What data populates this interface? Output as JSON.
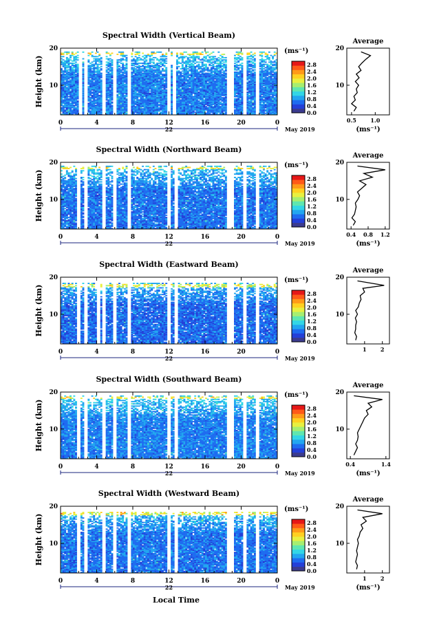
{
  "figure": {
    "xlabel": "Local Time",
    "date_label": "May 2019",
    "day_label": "22",
    "avg_title": "Average",
    "unit": "(ms⁻¹)"
  },
  "colors": {
    "scale": [
      "#3b3b8f",
      "#2440d8",
      "#1e6cf0",
      "#22a6f0",
      "#33d6e6",
      "#5fe6b0",
      "#a6ee70",
      "#e8f040",
      "#ffd020",
      "#ff9a18",
      "#ff5a18",
      "#e61818"
    ]
  },
  "chart_data": [
    {
      "type": "heatmap",
      "title": "Spectral Width (Vertical Beam)",
      "ylabel": "Height (km)",
      "xticks": [
        "0",
        "4",
        "8",
        "12",
        "16",
        "20",
        "0"
      ],
      "yticks": [
        "20",
        "10"
      ],
      "xlim": [
        0,
        24
      ],
      "ylim": [
        2,
        20
      ],
      "colorbar": {
        "ticks": [
          "2.8",
          "2.4",
          "2.0",
          "1.6",
          "1.2",
          "0.8",
          "0.4",
          "0.0"
        ],
        "range": [
          0,
          3.0
        ]
      },
      "gaps": [
        [
          2.0,
          2.4
        ],
        [
          2.7,
          3.0
        ],
        [
          4.7,
          5.0
        ],
        [
          5.8,
          6.2
        ],
        [
          7.5,
          7.8
        ],
        [
          11.8,
          12.2
        ],
        [
          12.5,
          12.8
        ],
        [
          18.5,
          19.2
        ],
        [
          20.3,
          20.6
        ],
        [
          21.6,
          21.9
        ]
      ],
      "data_top": 18.5,
      "base": 0.45,
      "spread": 0.25,
      "average": {
        "xticks": [
          "0.5",
          "1.0"
        ],
        "xlim": [
          0.4,
          1.3
        ],
        "yticks": [
          "20",
          "10"
        ],
        "xlabel": "(ms⁻¹)",
        "profile": [
          [
            0.55,
            3
          ],
          [
            0.6,
            4
          ],
          [
            0.5,
            5
          ],
          [
            0.58,
            6
          ],
          [
            0.55,
            7
          ],
          [
            0.62,
            8
          ],
          [
            0.6,
            9
          ],
          [
            0.65,
            10
          ],
          [
            0.58,
            11
          ],
          [
            0.66,
            12
          ],
          [
            0.6,
            13
          ],
          [
            0.7,
            14
          ],
          [
            0.65,
            15
          ],
          [
            0.72,
            16
          ],
          [
            0.8,
            17
          ],
          [
            0.9,
            18
          ],
          [
            0.7,
            19
          ]
        ]
      }
    },
    {
      "type": "heatmap",
      "title": "Spectral Width (Northward Beam)",
      "ylabel": "Height (km)",
      "xticks": [
        "0",
        "4",
        "8",
        "12",
        "16",
        "20",
        "0"
      ],
      "yticks": [
        "20",
        "10"
      ],
      "xlim": [
        0,
        24
      ],
      "ylim": [
        2,
        20
      ],
      "colorbar": {
        "ticks": [
          "2.8",
          "2.4",
          "2.0",
          "1.6",
          "1.2",
          "0.8",
          "0.4",
          "0.0"
        ],
        "range": [
          0,
          3.0
        ]
      },
      "gaps": [
        [
          1.8,
          2.1
        ],
        [
          2.6,
          2.9
        ],
        [
          4.7,
          5.0
        ],
        [
          5.8,
          6.2
        ],
        [
          7.5,
          7.8
        ],
        [
          11.8,
          12.2
        ],
        [
          12.6,
          12.9
        ],
        [
          18.5,
          19.2
        ],
        [
          20.3,
          20.6
        ],
        [
          21.6,
          21.9
        ]
      ],
      "data_top": 18.5,
      "base": 0.4,
      "spread": 0.22,
      "average": {
        "xticks": [
          "0.4",
          "0.8",
          "1.2"
        ],
        "xlim": [
          0.3,
          1.3
        ],
        "yticks": [
          "20",
          "10"
        ],
        "xlabel": "(ms⁻¹)",
        "profile": [
          [
            0.45,
            3
          ],
          [
            0.5,
            4
          ],
          [
            0.42,
            5
          ],
          [
            0.48,
            6
          ],
          [
            0.5,
            7
          ],
          [
            0.52,
            8
          ],
          [
            0.5,
            9
          ],
          [
            0.56,
            10
          ],
          [
            0.6,
            11
          ],
          [
            0.55,
            12
          ],
          [
            0.65,
            13
          ],
          [
            0.75,
            14
          ],
          [
            0.6,
            15
          ],
          [
            0.9,
            16
          ],
          [
            0.7,
            17
          ],
          [
            1.2,
            18
          ],
          [
            0.55,
            19
          ]
        ]
      }
    },
    {
      "type": "heatmap",
      "title": "Spectral Width (Eastward Beam)",
      "ylabel": "Height (km)",
      "xticks": [
        "0",
        "4",
        "8",
        "12",
        "16",
        "20",
        "0"
      ],
      "yticks": [
        "20",
        "10"
      ],
      "xlim": [
        0,
        24
      ],
      "ylim": [
        2,
        20
      ],
      "colorbar": {
        "ticks": [
          "2.8",
          "2.4",
          "2.0",
          "1.6",
          "1.2",
          "0.8",
          "0.4",
          "0.0"
        ],
        "range": [
          0,
          3.0
        ]
      },
      "gaps": [
        [
          1.8,
          2.1
        ],
        [
          2.6,
          2.9
        ],
        [
          4.0,
          4.3
        ],
        [
          4.7,
          5.0
        ],
        [
          5.8,
          6.2
        ],
        [
          7.5,
          7.8
        ],
        [
          11.8,
          12.2
        ],
        [
          12.6,
          12.9
        ],
        [
          18.5,
          19.2
        ],
        [
          20.3,
          20.6
        ],
        [
          21.6,
          21.9
        ]
      ],
      "data_top": 17.8,
      "base": 0.35,
      "spread": 0.22,
      "average": {
        "xticks": [
          "1",
          "2"
        ],
        "xlim": [
          0,
          2.4
        ],
        "yticks": [
          "20",
          "10"
        ],
        "xlabel": "",
        "profile": [
          [
            0.5,
            3
          ],
          [
            0.55,
            4
          ],
          [
            0.45,
            5
          ],
          [
            0.5,
            6
          ],
          [
            0.5,
            7
          ],
          [
            0.55,
            8
          ],
          [
            0.48,
            9
          ],
          [
            0.6,
            10
          ],
          [
            0.5,
            11
          ],
          [
            0.65,
            12
          ],
          [
            0.7,
            13
          ],
          [
            0.8,
            14
          ],
          [
            0.75,
            15
          ],
          [
            1.0,
            16
          ],
          [
            0.9,
            17
          ],
          [
            2.1,
            17.8
          ],
          [
            0.6,
            19
          ]
        ]
      }
    },
    {
      "type": "heatmap",
      "title": "Spectral Width (Southward Beam)",
      "ylabel": "Height (km)",
      "xticks": [
        "0",
        "4",
        "8",
        "12",
        "16",
        "20",
        "0"
      ],
      "yticks": [
        "20",
        "10"
      ],
      "xlim": [
        0,
        24
      ],
      "ylim": [
        2,
        20
      ],
      "colorbar": {
        "ticks": [
          "2.8",
          "2.4",
          "2.0",
          "1.6",
          "1.2",
          "0.8",
          "0.4",
          "0.0"
        ],
        "range": [
          0,
          3.0
        ]
      },
      "gaps": [
        [
          1.8,
          2.1
        ],
        [
          2.6,
          2.9
        ],
        [
          4.7,
          5.0
        ],
        [
          5.8,
          6.2
        ],
        [
          7.5,
          7.8
        ],
        [
          11.8,
          12.2
        ],
        [
          12.6,
          12.9
        ],
        [
          18.5,
          19.2
        ],
        [
          20.3,
          20.6
        ],
        [
          21.6,
          21.9
        ]
      ],
      "data_top": 18.5,
      "base": 0.45,
      "spread": 0.22,
      "average": {
        "xticks": [
          "0.4",
          "1.4"
        ],
        "xlim": [
          0.3,
          1.5
        ],
        "yticks": [
          "20",
          "10"
        ],
        "xlabel": "(ms⁻¹)",
        "profile": [
          [
            0.5,
            3
          ],
          [
            0.55,
            4
          ],
          [
            0.6,
            5
          ],
          [
            0.55,
            6
          ],
          [
            0.6,
            7
          ],
          [
            0.62,
            8
          ],
          [
            0.6,
            9
          ],
          [
            0.65,
            10
          ],
          [
            0.7,
            11
          ],
          [
            0.75,
            12
          ],
          [
            0.8,
            13
          ],
          [
            0.9,
            14
          ],
          [
            0.85,
            15
          ],
          [
            1.0,
            16
          ],
          [
            0.9,
            17
          ],
          [
            1.3,
            18
          ],
          [
            0.5,
            19
          ]
        ]
      }
    },
    {
      "type": "heatmap",
      "title": "Spectral Width (Westward Beam)",
      "ylabel": "Height (km)",
      "xticks": [
        "0",
        "4",
        "8",
        "12",
        "16",
        "20",
        "0"
      ],
      "yticks": [
        "20",
        "10"
      ],
      "xlim": [
        0,
        24
      ],
      "ylim": [
        2,
        20
      ],
      "colorbar": {
        "ticks": [
          "2.8",
          "2.4",
          "2.0",
          "1.6",
          "1.2",
          "0.8",
          "0.4",
          "0.0"
        ],
        "range": [
          0,
          3.0
        ]
      },
      "gaps": [
        [
          1.8,
          2.1
        ],
        [
          2.6,
          2.9
        ],
        [
          4.7,
          5.0
        ],
        [
          5.8,
          6.2
        ],
        [
          7.5,
          7.8
        ],
        [
          11.8,
          12.2
        ],
        [
          12.6,
          12.9
        ],
        [
          18.5,
          19.2
        ],
        [
          20.3,
          20.6
        ],
        [
          21.6,
          21.9
        ]
      ],
      "data_top": 18.0,
      "base": 0.4,
      "spread": 0.22,
      "average": {
        "xticks": [
          "1",
          "2"
        ],
        "xlim": [
          0,
          2.4
        ],
        "yticks": [
          "20",
          "10"
        ],
        "xlabel": "(ms⁻¹)",
        "profile": [
          [
            0.55,
            3
          ],
          [
            0.6,
            4
          ],
          [
            0.5,
            5
          ],
          [
            0.55,
            6
          ],
          [
            0.6,
            7
          ],
          [
            0.55,
            8
          ],
          [
            0.6,
            9
          ],
          [
            0.65,
            10
          ],
          [
            0.6,
            11
          ],
          [
            0.7,
            12
          ],
          [
            0.75,
            13
          ],
          [
            0.9,
            14
          ],
          [
            0.8,
            15
          ],
          [
            1.1,
            16
          ],
          [
            0.9,
            17
          ],
          [
            2.0,
            18
          ],
          [
            0.6,
            19
          ]
        ]
      }
    }
  ]
}
